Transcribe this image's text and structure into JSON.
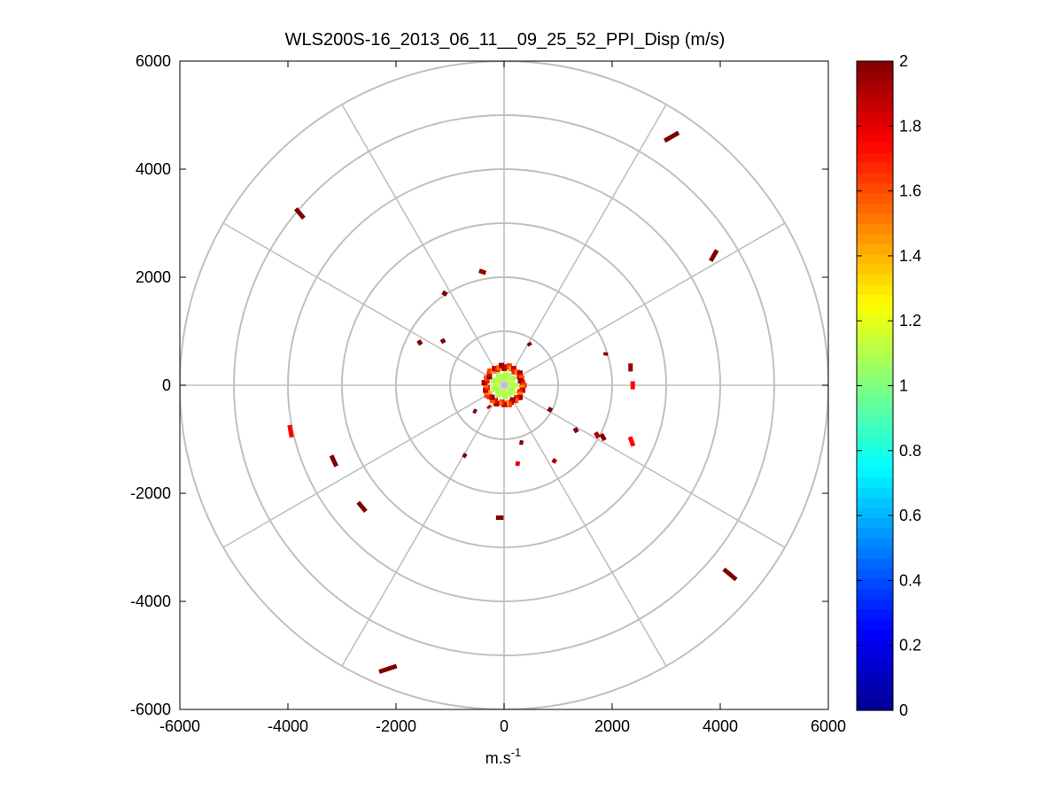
{
  "chart_data": {
    "type": "scatter",
    "subtype": "polar-ppi-map",
    "title": "WLS200S-16_2013_06_11__09_25_52_PPI_Disp (m/s)",
    "xlabel": "m.s",
    "xlabel_superscript": "-1",
    "ylabel": "",
    "xlim": [
      -6000,
      6000
    ],
    "ylim": [
      -6000,
      6000
    ],
    "xticks": [
      -6000,
      -4000,
      -2000,
      0,
      2000,
      4000,
      6000
    ],
    "yticks": [
      -6000,
      -4000,
      -2000,
      0,
      2000,
      4000,
      6000
    ],
    "xtick_labels": [
      "-6000",
      "-4000",
      "-2000",
      "0",
      "2000",
      "4000",
      "6000"
    ],
    "ytick_labels": [
      "6000",
      "4000",
      "2000",
      "0",
      "-2000",
      "-4000",
      "-6000"
    ],
    "polar_grid": {
      "rings": [
        1000,
        2000,
        3000,
        4000,
        5000,
        6000
      ],
      "spokes_deg": [
        0,
        30,
        60,
        90,
        120,
        150,
        180,
        210,
        240,
        270,
        300,
        330
      ]
    },
    "colorbar": {
      "min": 0,
      "max": 2,
      "ticks": [
        "0",
        "0.2",
        "0.4",
        "0.6",
        "0.8",
        "1",
        "1.2",
        "1.4",
        "1.6",
        "1.8",
        "2"
      ],
      "colormap": "jet",
      "color_stops": [
        "#00008f",
        "#0000ff",
        "#0080ff",
        "#00ffff",
        "#80ff80",
        "#ffff00",
        "#ff8000",
        "#ff0000",
        "#800000"
      ]
    },
    "segments": [
      {
        "x": 3100,
        "y": 4600,
        "angle_deg": 30,
        "len": 300,
        "value": 2.0
      },
      {
        "x": 3880,
        "y": 2400,
        "angle_deg": 60,
        "len": 230,
        "value": 2.0
      },
      {
        "x": -3780,
        "y": 3180,
        "angle_deg": 130,
        "len": 230,
        "value": 2.0
      },
      {
        "x": 4180,
        "y": -3500,
        "angle_deg": 140,
        "len": 300,
        "value": 2.0
      },
      {
        "x": -2150,
        "y": -5250,
        "angle_deg": 18,
        "len": 340,
        "value": 2.0
      },
      {
        "x": -2630,
        "y": -2250,
        "angle_deg": 130,
        "len": 220,
        "value": 2.0
      },
      {
        "x": -3150,
        "y": -1400,
        "angle_deg": 115,
        "len": 220,
        "value": 2.0
      },
      {
        "x": -80,
        "y": -2450,
        "angle_deg": 0,
        "len": 140,
        "value": 2.0
      },
      {
        "x": -400,
        "y": 2100,
        "angle_deg": 160,
        "len": 130,
        "value": 1.95
      },
      {
        "x": -3950,
        "y": -850,
        "angle_deg": 100,
        "len": 230,
        "value": 1.75
      },
      {
        "x": 2360,
        "y": -1040,
        "angle_deg": 110,
        "len": 180,
        "value": 1.75
      },
      {
        "x": 2340,
        "y": 330,
        "angle_deg": 90,
        "len": 150,
        "value": 1.95
      },
      {
        "x": 2380,
        "y": 0,
        "angle_deg": 90,
        "len": 150,
        "value": 1.75
      },
      {
        "x": 1830,
        "y": -960,
        "angle_deg": 120,
        "len": 130,
        "value": 2.0
      },
      {
        "x": 1720,
        "y": -920,
        "angle_deg": 120,
        "len": 110,
        "value": 1.9
      },
      {
        "x": -1100,
        "y": 1700,
        "angle_deg": 150,
        "len": 90,
        "value": 2.0
      },
      {
        "x": -1560,
        "y": 790,
        "angle_deg": 120,
        "len": 90,
        "value": 2.0
      },
      {
        "x": -1130,
        "y": 820,
        "angle_deg": 120,
        "len": 80,
        "value": 2.0
      },
      {
        "x": 850,
        "y": -450,
        "angle_deg": 150,
        "len": 80,
        "value": 2.0
      },
      {
        "x": 1330,
        "y": -830,
        "angle_deg": 120,
        "len": 90,
        "value": 2.0
      },
      {
        "x": 930,
        "y": -1400,
        "angle_deg": 150,
        "len": 80,
        "value": 1.9
      },
      {
        "x": 320,
        "y": -1060,
        "angle_deg": 170,
        "len": 70,
        "value": 2.0
      },
      {
        "x": -730,
        "y": -1300,
        "angle_deg": 150,
        "len": 70,
        "value": 2.0
      },
      {
        "x": 250,
        "y": -1450,
        "angle_deg": 170,
        "len": 80,
        "value": 1.8
      },
      {
        "x": 470,
        "y": 760,
        "angle_deg": 120,
        "len": 60,
        "value": 2.0
      },
      {
        "x": 1880,
        "y": 580,
        "angle_deg": 80,
        "len": 60,
        "value": 2.0
      },
      {
        "x": -540,
        "y": -480,
        "angle_deg": 150,
        "len": 60,
        "value": 2.0
      },
      {
        "x": -280,
        "y": -400,
        "angle_deg": 130,
        "len": 50,
        "value": 1.9
      }
    ],
    "center_cluster": {
      "radius": 370,
      "inner_radius": 220,
      "value_range": [
        1.0,
        2.0
      ]
    }
  }
}
